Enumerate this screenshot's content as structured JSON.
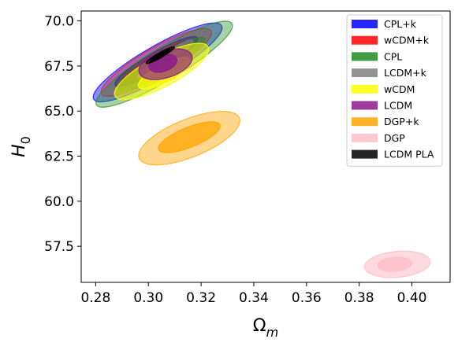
{
  "chart_data": {
    "type": "contour",
    "xlabel": "Ω",
    "xlabel_sub": "m",
    "ylabel": "H",
    "ylabel_sub": "0",
    "xlim": [
      0.2745,
      0.4145
    ],
    "ylim": [
      55.5,
      70.55
    ],
    "xticks": [
      "0.28",
      "0.30",
      "0.32",
      "0.34",
      "0.36",
      "0.38",
      "0.40"
    ],
    "yticks": [
      "57.5",
      "60.0",
      "62.5",
      "65.0",
      "67.5",
      "70.0"
    ],
    "legend_position": "upper right",
    "series": [
      {
        "name": "CPL+k",
        "color": "#0000ff",
        "outer": {
          "cx": 0.3035,
          "cy": 67.7,
          "rx": 0.028,
          "ry": 0.9,
          "rot": -30,
          "opacity": 0.45
        },
        "inner": {
          "cx": 0.303,
          "cy": 67.75,
          "rx": 0.018,
          "ry": 0.5,
          "rot": -30,
          "opacity": 0.6
        }
      },
      {
        "name": "wCDM+k",
        "color": "#ff0000",
        "outer": {
          "cx": 0.303,
          "cy": 67.7,
          "rx": 0.024,
          "ry": 0.8,
          "rot": -30,
          "opacity": 0.3
        },
        "inner": {
          "cx": 0.303,
          "cy": 67.7,
          "rx": 0.015,
          "ry": 0.45,
          "rot": -30,
          "opacity": 0.35
        }
      },
      {
        "name": "CPL",
        "color": "#228b22",
        "outer": {
          "cx": 0.306,
          "cy": 67.6,
          "rx": 0.03,
          "ry": 0.9,
          "rot": -31,
          "opacity": 0.4
        },
        "inner": {
          "cx": 0.305,
          "cy": 67.6,
          "rx": 0.019,
          "ry": 0.5,
          "rot": -31,
          "opacity": 0.45
        }
      },
      {
        "name": "LCDM+k",
        "color": "#808080",
        "outer": {
          "cx": 0.3065,
          "cy": 67.9,
          "rx": 0.0125,
          "ry": 0.28,
          "rot": -34,
          "opacity": 0.55
        },
        "inner": {
          "cx": 0.306,
          "cy": 67.9,
          "rx": 0.008,
          "ry": 0.15,
          "rot": -34,
          "opacity": 0.7
        }
      },
      {
        "name": "wCDM",
        "color": "#ffff00",
        "outer": {
          "cx": 0.305,
          "cy": 67.2,
          "rx": 0.02,
          "ry": 0.85,
          "rot": -28,
          "opacity": 0.55
        },
        "inner": {
          "cx": 0.306,
          "cy": 67.1,
          "rx": 0.011,
          "ry": 0.5,
          "rot": -28,
          "opacity": 0.7
        }
      },
      {
        "name": "LCDM",
        "color": "#8b1a8b",
        "outer": {
          "cx": 0.3065,
          "cy": 67.6,
          "rx": 0.0105,
          "ry": 0.75,
          "rot": -18,
          "opacity": 0.65
        },
        "inner": {
          "cx": 0.3055,
          "cy": 67.65,
          "rx": 0.0055,
          "ry": 0.45,
          "rot": -18,
          "opacity": 0.85
        }
      },
      {
        "name": "DGP+k",
        "color": "#ffa500",
        "outer": {
          "cx": 0.3155,
          "cy": 63.5,
          "rx": 0.0205,
          "ry": 1.05,
          "rot": -22,
          "opacity": 0.45
        },
        "inner": {
          "cx": 0.3155,
          "cy": 63.55,
          "rx": 0.0125,
          "ry": 0.55,
          "rot": -22,
          "opacity": 0.75
        }
      },
      {
        "name": "DGP",
        "color": "#ffc0cb",
        "outer": {
          "cx": 0.3945,
          "cy": 56.5,
          "rx": 0.0125,
          "ry": 0.72,
          "rot": -5,
          "opacity": 0.6
        },
        "inner": {
          "cx": 0.3935,
          "cy": 56.5,
          "rx": 0.0065,
          "ry": 0.38,
          "rot": -5,
          "opacity": 0.9
        }
      },
      {
        "name": "LCDM PLA",
        "color": "#000000",
        "outer": {
          "cx": 0.3045,
          "cy": 68.1,
          "rx": 0.0062,
          "ry": 0.14,
          "rot": -30,
          "opacity": 0.7
        },
        "inner": {
          "cx": 0.3045,
          "cy": 68.1,
          "rx": 0.0042,
          "ry": 0.08,
          "rot": -30,
          "opacity": 0.95
        }
      }
    ]
  }
}
